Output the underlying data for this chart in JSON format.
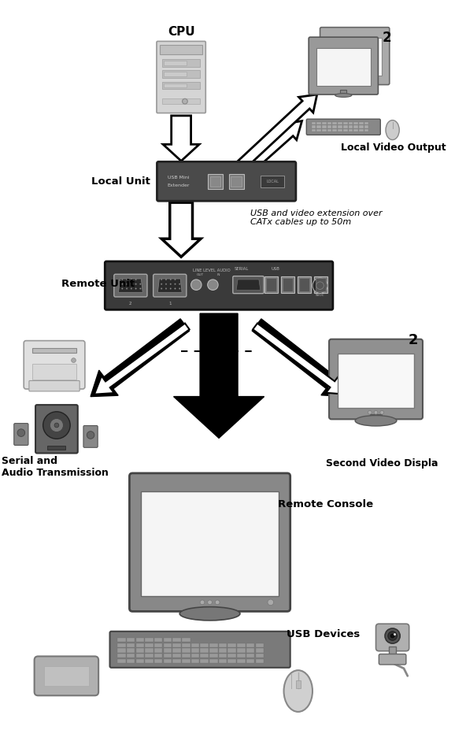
{
  "bg_color": "#ffffff",
  "labels": {
    "cpu": "CPU",
    "local_unit": "Local Unit",
    "local_video": "Local Video Output",
    "cable_note": "USB and video extension over\nCATx cables up to 50m",
    "remote_unit": "Remote Unit",
    "serial_audio": "Serial and\nAudio Transmission",
    "second_video": "Second Video Displa",
    "remote_console": "Remote Console",
    "usb_devices": "USB Devices",
    "num2_top": "2",
    "num2_mid": "2"
  },
  "figsize": [
    5.92,
    9.41
  ],
  "dpi": 100
}
